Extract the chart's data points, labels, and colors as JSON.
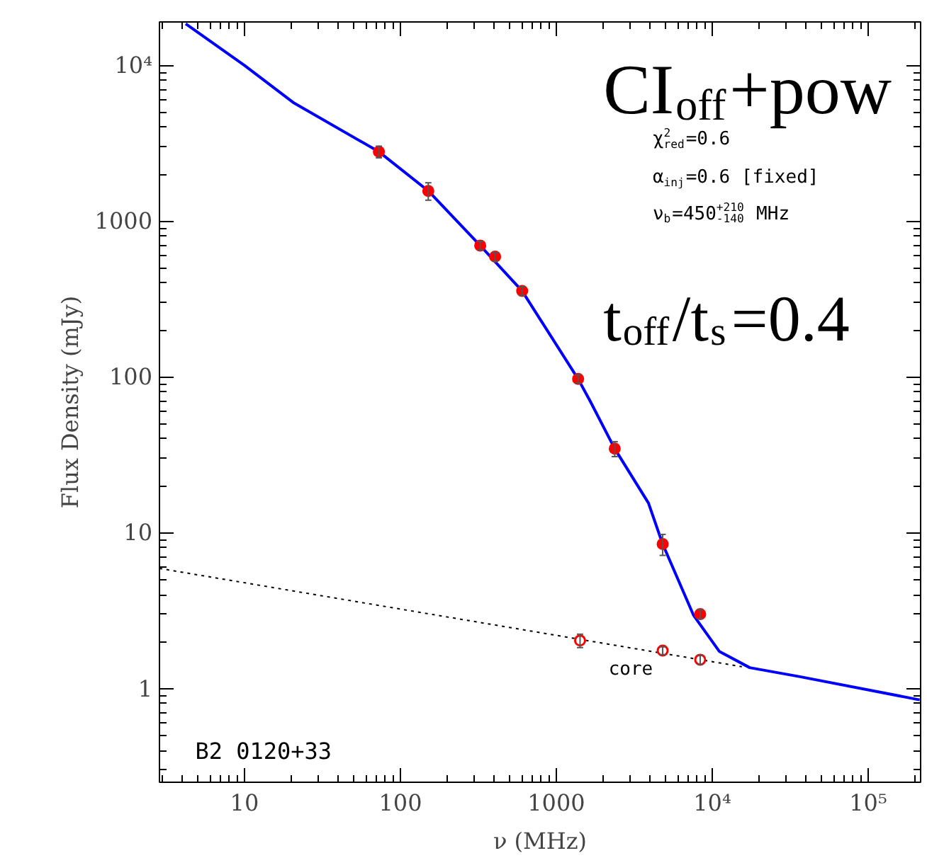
{
  "chart_data": {
    "type": "scatter",
    "xlabel": "ν (MHz)",
    "ylabel": "Flux Density (mJy)",
    "log": "xy",
    "xlim": [
      2.85,
      217000
    ],
    "ylim": [
      0.25,
      19000
    ],
    "xticks": [
      10,
      100,
      1000,
      {
        "value": 10000,
        "label": "10⁴"
      },
      {
        "value": 100000,
        "label": "10⁵"
      }
    ],
    "yticks": [
      1,
      10,
      100,
      1000,
      {
        "value": 10000,
        "label": "10⁴"
      }
    ],
    "grid": false,
    "marker": "circle",
    "series": [
      {
        "type": "line",
        "color": "#0000ff",
        "line_style": "solid",
        "marker": "none",
        "x": [
          4.2,
          10,
          20.8,
          72.8,
          151,
          325,
          604,
          1380,
          1650,
          2370,
          3900,
          4810,
          7600,
          11100,
          17400,
          36500,
          214000
        ],
        "values": [
          18500,
          10000,
          5730,
          2790,
          1563,
          697,
          356,
          97,
          69.8,
          34.6,
          15.5,
          8.45,
          2.94,
          1.73,
          1.36,
          1.19,
          0.845
        ]
      },
      {
        "type": "line",
        "color": "#000000",
        "line_style": "dotted",
        "marker": "none",
        "x": [
          2.85,
          15500
        ],
        "values": [
          5.9,
          1.38
        ]
      },
      {
        "color": "#ff0000",
        "x": [
          72.8,
          151,
          325,
          405,
          604,
          1380,
          2370,
          4810,
          8370
        ],
        "values": [
          2790,
          1563,
          697,
          592,
          356,
          97,
          34.6,
          8.45,
          3.0
        ],
        "errors": [
          240,
          200,
          45,
          38,
          23,
          6,
          3.8,
          1.3,
          0.2
        ]
      },
      {
        "color": "#ff0000",
        "x": [
          1420,
          4810,
          8370
        ],
        "values": [
          2.03,
          1.75,
          1.53
        ],
        "errors": [
          0.2,
          0.1,
          0.1
        ]
      }
    ],
    "annotations": [
      "CI$_{off}$+pow",
      "χ$^{2}$$_{red}$=0.6",
      "α$_{inj}$=0.6 [fixed]",
      "ν$_{b}$=450$^{+210}$$_{-140}$ MHz",
      "t$_{off}$/t$_{s}$=0.4",
      "B2 0120+33",
      "core"
    ]
  }
}
